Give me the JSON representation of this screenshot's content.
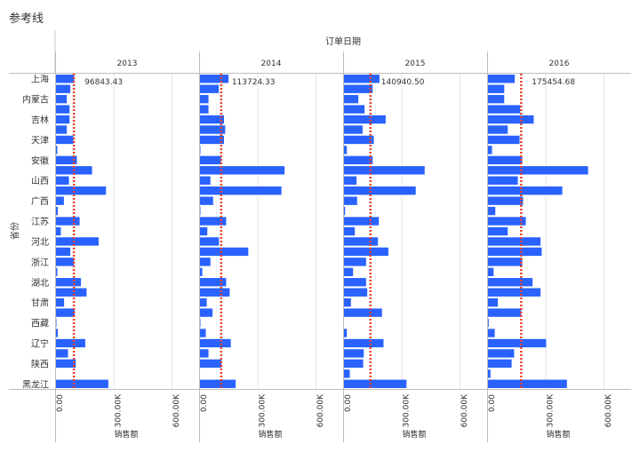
{
  "page_title": "参考线",
  "chart_data": {
    "type": "bar",
    "orientation": "horizontal",
    "title": "参考线",
    "column_header": "订单日期",
    "ylabel": "省份",
    "xlabel": "销售额",
    "xlim": [
      0,
      720000
    ],
    "xticks": [
      0,
      300000,
      600000
    ],
    "xtick_labels": [
      "0.00",
      "300.00K",
      "600.00K"
    ],
    "grid": true,
    "bar_color": "#2962ff",
    "reference_line_color": "#e8412c",
    "reference_line_style": "dotted",
    "row_labels": [
      "上海",
      "",
      "内蒙古",
      "",
      "吉林",
      "",
      "天津",
      "",
      "安徽",
      "",
      "山西",
      "",
      "广西",
      "",
      "江苏",
      "",
      "河北",
      "",
      "浙江",
      "",
      "湖北",
      "",
      "甘肃",
      "",
      "西藏",
      "",
      "辽宁",
      "",
      "陕西",
      "",
      "黑龙江"
    ],
    "panels": [
      {
        "year": "2013",
        "reference_value": 96843.43,
        "reference_label": "96843.43",
        "values": [
          96000,
          76000,
          58000,
          72000,
          72000,
          58000,
          92000,
          9000,
          110000,
          188000,
          69000,
          260000,
          43000,
          12000,
          124000,
          27000,
          222000,
          76000,
          95000,
          9000,
          131000,
          160000,
          44000,
          99000,
          2000,
          12000,
          153000,
          64000,
          104000,
          0,
          272000
        ]
      },
      {
        "year": "2014",
        "reference_value": 113724.33,
        "reference_label": "113724.33",
        "values": [
          149000,
          99000,
          46000,
          46000,
          126000,
          132000,
          126000,
          3000,
          110000,
          438000,
          56000,
          422000,
          70000,
          3000,
          137000,
          40000,
          100000,
          251000,
          56000,
          14000,
          137000,
          155000,
          37000,
          67000,
          1000,
          32000,
          161000,
          46000,
          113000,
          0,
          186000
        ]
      },
      {
        "year": "2015",
        "reference_value": 140940.5,
        "reference_label": "140940.50",
        "values": [
          185000,
          150000,
          76000,
          108000,
          217000,
          98000,
          156000,
          17000,
          150000,
          418000,
          67000,
          372000,
          70000,
          8000,
          182000,
          58000,
          177000,
          231000,
          116000,
          49000,
          116000,
          122000,
          38000,
          198000,
          0,
          17000,
          206000,
          104000,
          101000,
          32000,
          324000
        ]
      },
      {
        "year": "2016",
        "reference_value": 175454.68,
        "reference_label": "175454.68",
        "values": [
          140000,
          86000,
          86000,
          168000,
          238000,
          104000,
          165000,
          23000,
          179000,
          518000,
          156000,
          385000,
          183000,
          40000,
          197000,
          104000,
          273000,
          279000,
          179000,
          31000,
          232000,
          273000,
          53000,
          173000,
          6000,
          37000,
          302000,
          137000,
          124000,
          15000,
          409000
        ]
      }
    ]
  }
}
